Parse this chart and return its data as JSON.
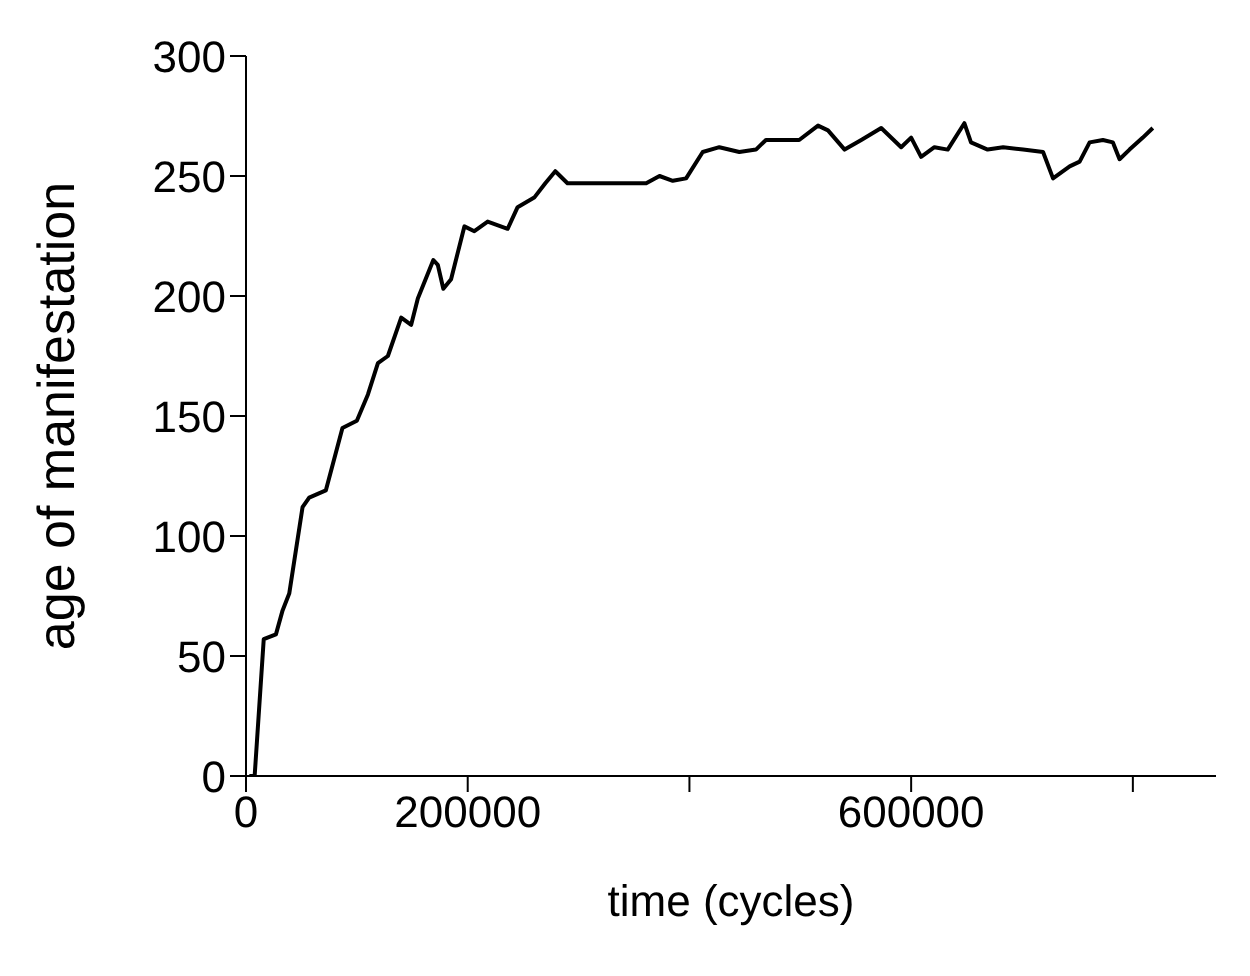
{
  "chart_data": {
    "type": "line",
    "xlabel": "time (cycles)",
    "ylabel": "age of manifestation",
    "xlim": [
      0,
      875000
    ],
    "xticks": [
      0,
      200000,
      {
        "value": 400000,
        "label": null
      },
      600000,
      {
        "value": 800000,
        "label": null
      }
    ],
    "ylim": [
      0,
      300
    ],
    "yticks": [
      0,
      50,
      100,
      150,
      200,
      250,
      300
    ],
    "grid": false,
    "legend": false,
    "marker": "none",
    "line_style": "solid",
    "series": [
      {
        "color": "#000000",
        "x": [
          3000,
          7800,
          16000,
          27000,
          33000,
          39000,
          51000,
          57000,
          72000,
          87000,
          100000,
          110000,
          119000,
          128000,
          140000,
          149000,
          155000,
          169000,
          173000,
          178000,
          185000,
          197000,
          206000,
          218000,
          236000,
          245000,
          260000,
          270000,
          279000,
          290000,
          313000,
          337000,
          361000,
          373000,
          385000,
          397000,
          412000,
          427000,
          445000,
          460000,
          469000,
          499000,
          516000,
          525000,
          540000,
          555000,
          573000,
          591000,
          600000,
          609000,
          621000,
          633000,
          648000,
          654000,
          669000,
          683000,
          701000,
          719000,
          728000,
          743000,
          752000,
          761000,
          773000,
          782000,
          788000,
          797000,
          809000,
          818000
        ],
        "values": [
          0,
          0,
          57,
          59,
          69,
          76,
          112,
          116,
          119,
          145,
          148,
          159,
          172,
          175,
          191,
          188,
          199,
          215,
          213,
          203,
          207,
          229,
          227,
          231,
          228,
          237,
          241,
          247,
          252,
          247,
          247,
          247,
          247,
          250,
          248,
          249,
          260,
          262,
          260,
          261,
          265,
          265,
          271,
          269,
          261,
          265,
          270,
          262,
          266,
          258,
          262,
          261,
          272,
          264,
          261,
          262,
          261,
          260,
          249,
          254,
          256,
          264,
          265,
          264,
          257,
          261,
          266,
          270
        ]
      }
    ]
  }
}
